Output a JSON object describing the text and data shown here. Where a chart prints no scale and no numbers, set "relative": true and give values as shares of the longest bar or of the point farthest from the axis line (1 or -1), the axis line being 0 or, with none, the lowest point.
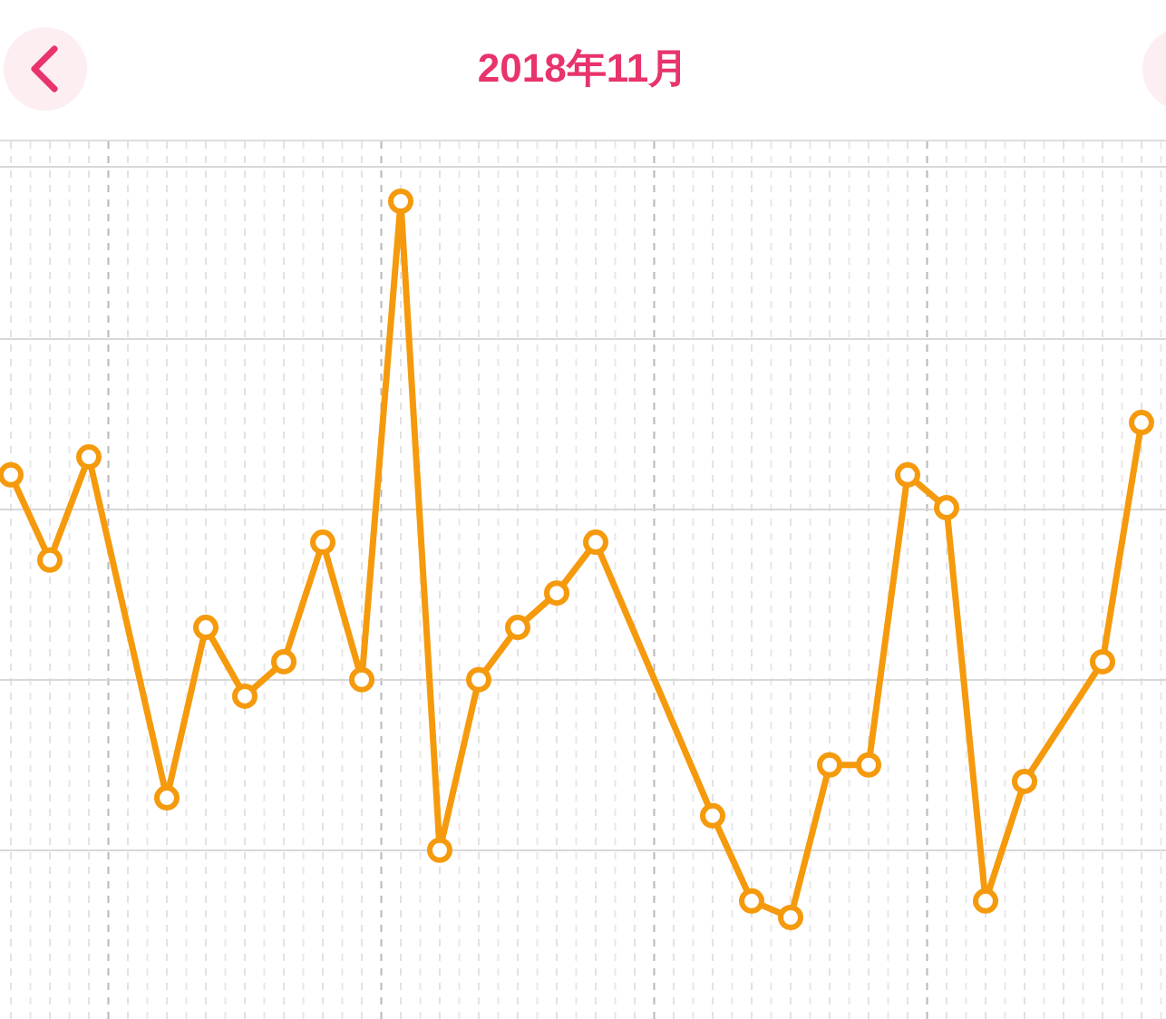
{
  "chart_data": {
    "type": "line",
    "title": "2018年11月",
    "relative": true,
    "grid": true,
    "marker": "circle",
    "categories": [
      null,
      null,
      null,
      null,
      null,
      null,
      null,
      null,
      null,
      null,
      null,
      null,
      null,
      null,
      null,
      null,
      null,
      null,
      null,
      null,
      null,
      null,
      null,
      null,
      null,
      null,
      null,
      null,
      null,
      null
    ],
    "series": [
      {
        "color": "#f59a0c",
        "values": [
          0.618,
          0.499,
          0.643,
          null,
          0.167,
          0.405,
          0.309,
          0.357,
          0.524,
          0.332,
          1,
          0.094,
          0.332,
          0.405,
          0.453,
          0.524,
          null,
          null,
          0.142,
          0.023,
          0,
          0.213,
          0.213,
          0.618,
          0.572,
          0.023,
          0.19,
          null,
          0.357,
          0.691
        ]
      }
    ]
  }
}
